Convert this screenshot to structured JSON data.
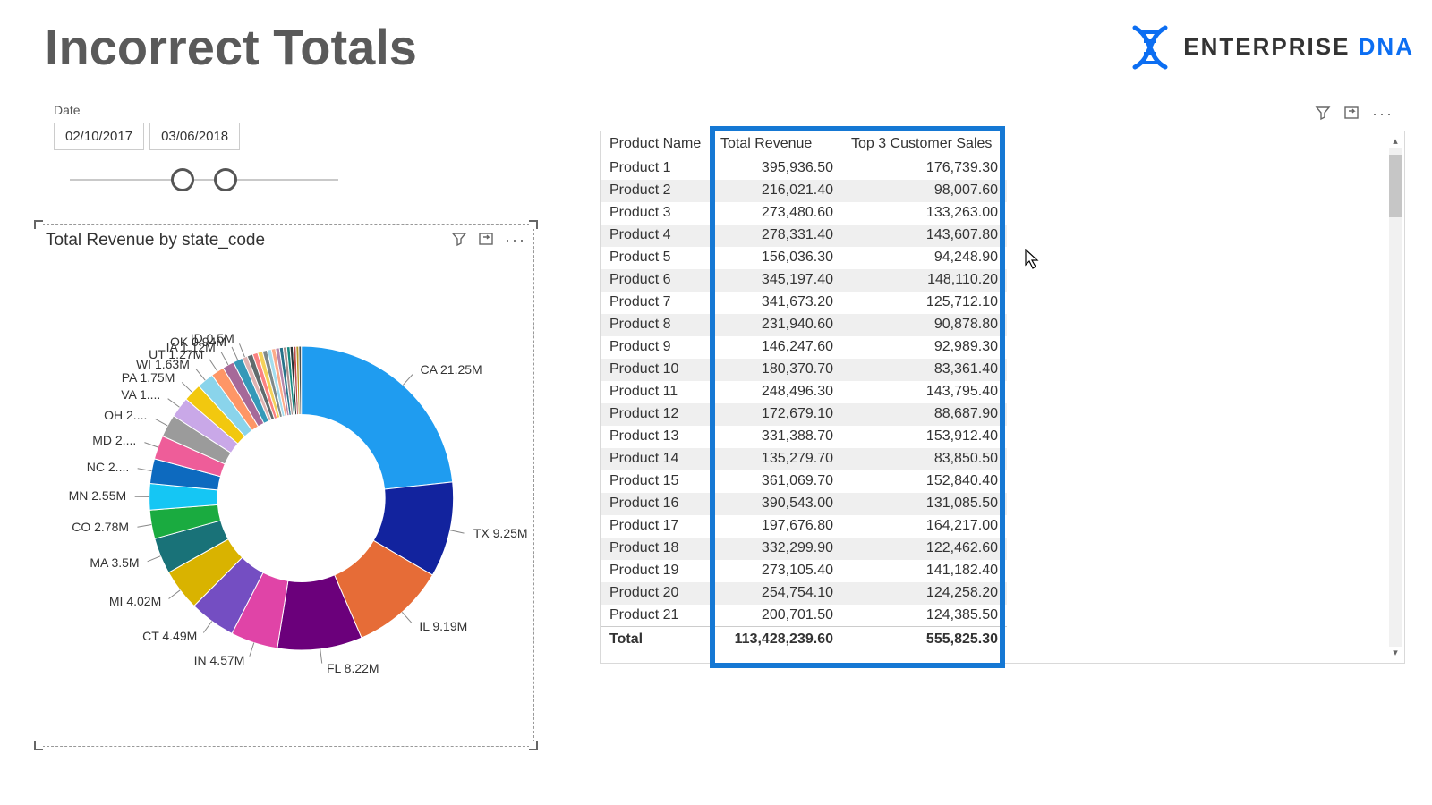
{
  "page": {
    "title": "Incorrect Totals",
    "brand_main": "ENTERPRISE",
    "brand_accent": "DNA",
    "brand_color": "#0c6ef2"
  },
  "slicer": {
    "label": "Date",
    "start": "02/10/2017",
    "end": "03/06/2018",
    "handle1_pct": 42,
    "handle2_pct": 58
  },
  "chart": {
    "title": "Total Revenue by state_code",
    "type": "donut",
    "inner_radius_pct": 0.55,
    "slices": [
      {
        "label": "CA 21.25M",
        "value": 21.25,
        "color": "#1f9cf0"
      },
      {
        "label": "TX 9.25M",
        "value": 9.25,
        "color": "#12239e"
      },
      {
        "label": "IL 9.19M",
        "value": 9.19,
        "color": "#e66c37"
      },
      {
        "label": "FL 8.22M",
        "value": 8.22,
        "color": "#6b007b"
      },
      {
        "label": "IN 4.57M",
        "value": 4.57,
        "color": "#e044a7"
      },
      {
        "label": "CT 4.49M",
        "value": 4.49,
        "color": "#744ec2"
      },
      {
        "label": "MI 4.02M",
        "value": 4.02,
        "color": "#d9b300"
      },
      {
        "label": "MA 3.5M",
        "value": 3.5,
        "color": "#197278"
      },
      {
        "label": "CO 2.78M",
        "value": 2.78,
        "color": "#1aab40"
      },
      {
        "label": "MN 2.55M",
        "value": 2.55,
        "color": "#15c6f4"
      },
      {
        "label": "NC 2....",
        "value": 2.4,
        "color": "#0d6abf"
      },
      {
        "label": "MD 2....",
        "value": 2.3,
        "color": "#ee5d99"
      },
      {
        "label": "OH 2....",
        "value": 2.2,
        "color": "#9b9b9b"
      },
      {
        "label": "VA 1....",
        "value": 2.0,
        "color": "#c9a8e8"
      },
      {
        "label": "PA 1.75M",
        "value": 1.75,
        "color": "#f2c80f"
      },
      {
        "label": "WI 1.63M",
        "value": 1.63,
        "color": "#8ad4eb"
      },
      {
        "label": "UT 1.27M",
        "value": 1.27,
        "color": "#fe9666"
      },
      {
        "label": "IA 1.12M",
        "value": 1.12,
        "color": "#a66999"
      },
      {
        "label": "OK 0.94M",
        "value": 0.94,
        "color": "#3599b8"
      },
      {
        "label": "ID 0.5M",
        "value": 0.5,
        "color": "#dfb3b2"
      },
      {
        "label": "",
        "value": 0.55,
        "color": "#5f6b6d"
      },
      {
        "label": "",
        "value": 0.5,
        "color": "#fb8281"
      },
      {
        "label": "",
        "value": 0.48,
        "color": "#f4d25a"
      },
      {
        "label": "",
        "value": 0.45,
        "color": "#7f898a"
      },
      {
        "label": "",
        "value": 0.42,
        "color": "#a4ddee"
      },
      {
        "label": "",
        "value": 0.4,
        "color": "#fdab89"
      },
      {
        "label": "",
        "value": 0.38,
        "color": "#b687ac"
      },
      {
        "label": "",
        "value": 0.36,
        "color": "#28738a"
      },
      {
        "label": "",
        "value": 0.34,
        "color": "#a78f8f"
      },
      {
        "label": "",
        "value": 0.32,
        "color": "#168980"
      },
      {
        "label": "",
        "value": 0.3,
        "color": "#293537"
      },
      {
        "label": "",
        "value": 0.28,
        "color": "#bb4a4a"
      },
      {
        "label": "",
        "value": 0.26,
        "color": "#b59525"
      },
      {
        "label": "",
        "value": 0.24,
        "color": "#475052"
      }
    ]
  },
  "table": {
    "columns": [
      "Product Name",
      "Total Revenue",
      "Top 3 Customer Sales"
    ],
    "rows": [
      [
        "Product 1",
        "395,936.50",
        "176,739.30"
      ],
      [
        "Product 2",
        "216,021.40",
        "98,007.60"
      ],
      [
        "Product 3",
        "273,480.60",
        "133,263.00"
      ],
      [
        "Product 4",
        "278,331.40",
        "143,607.80"
      ],
      [
        "Product 5",
        "156,036.30",
        "94,248.90"
      ],
      [
        "Product 6",
        "345,197.40",
        "148,110.20"
      ],
      [
        "Product 7",
        "341,673.20",
        "125,712.10"
      ],
      [
        "Product 8",
        "231,940.60",
        "90,878.80"
      ],
      [
        "Product 9",
        "146,247.60",
        "92,989.30"
      ],
      [
        "Product 10",
        "180,370.70",
        "83,361.40"
      ],
      [
        "Product 11",
        "248,496.30",
        "143,795.40"
      ],
      [
        "Product 12",
        "172,679.10",
        "88,687.90"
      ],
      [
        "Product 13",
        "331,388.70",
        "153,912.40"
      ],
      [
        "Product 14",
        "135,279.70",
        "83,850.50"
      ],
      [
        "Product 15",
        "361,069.70",
        "152,840.40"
      ],
      [
        "Product 16",
        "390,543.00",
        "131,085.50"
      ],
      [
        "Product 17",
        "197,676.80",
        "164,217.00"
      ],
      [
        "Product 18",
        "332,299.90",
        "122,462.60"
      ],
      [
        "Product 19",
        "273,105.40",
        "141,182.40"
      ],
      [
        "Product 20",
        "254,754.10",
        "124,258.20"
      ],
      [
        "Product 21",
        "200,701.50",
        "124,385.50"
      ]
    ],
    "total_label": "Total",
    "total_revenue": "113,428,239.60",
    "total_top3": "555,825.30",
    "highlight_color": "#1578d4"
  }
}
